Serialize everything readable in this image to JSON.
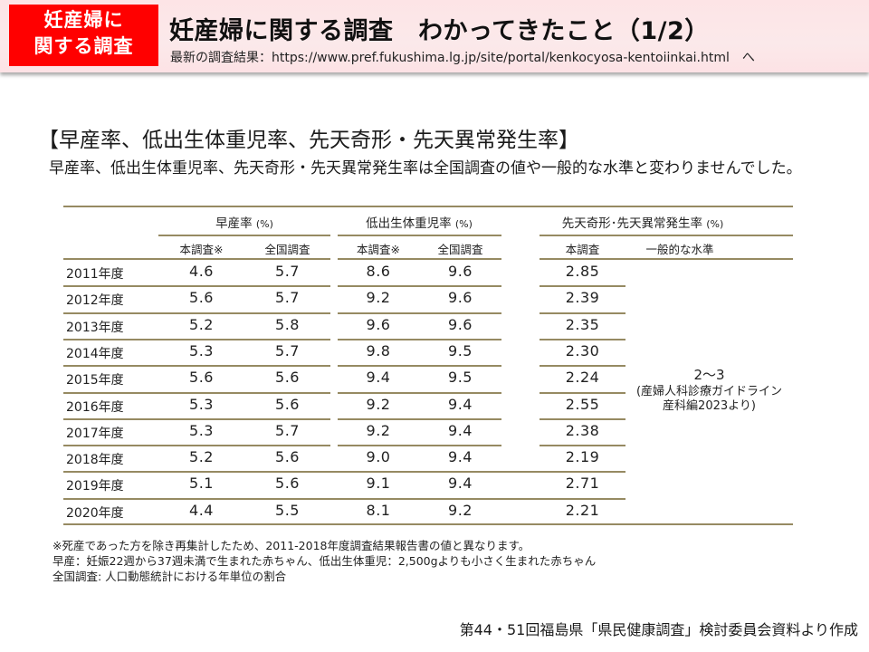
{
  "header": {
    "badge_line1": "妊産婦に",
    "badge_line2": "関する調査",
    "title": "妊産婦に関する調査　わかってきたこと（1/2）",
    "subtitle": "最新の調査結果：https://www.pref.fukushima.lg.jp/site/portal/kenkocyosa-kentoiinkai.html　へ",
    "badge_color": "#ff0000"
  },
  "section": {
    "heading": "【早産率、低出生体重児率、先天奇形・先天異常発生率】",
    "description": "早産率、低出生体重児率、先天奇形・先天異常発生率は全国調査の値や一般的な水準と変わりませんでした。"
  },
  "table": {
    "groups": [
      {
        "label": "早産率",
        "unit": "(%)"
      },
      {
        "label": "低出生体重児率",
        "unit": "(%)"
      },
      {
        "label": "先天奇形･先天異常発生率",
        "unit": "(%)"
      }
    ],
    "subheaders": [
      "本調査※",
      "全国調査",
      "本調査※",
      "全国調査",
      "本調査",
      "一般的な水準"
    ],
    "rows": [
      {
        "year": "2011年度",
        "preterm_survey": "4.6",
        "preterm_national": "5.7",
        "lbw_survey": "8.6",
        "lbw_national": "9.6",
        "anomaly_survey": "2.85"
      },
      {
        "year": "2012年度",
        "preterm_survey": "5.6",
        "preterm_national": "5.7",
        "lbw_survey": "9.2",
        "lbw_national": "9.6",
        "anomaly_survey": "2.39"
      },
      {
        "year": "2013年度",
        "preterm_survey": "5.2",
        "preterm_national": "5.8",
        "lbw_survey": "9.6",
        "lbw_national": "9.6",
        "anomaly_survey": "2.35"
      },
      {
        "year": "2014年度",
        "preterm_survey": "5.3",
        "preterm_national": "5.7",
        "lbw_survey": "9.8",
        "lbw_national": "9.5",
        "anomaly_survey": "2.30"
      },
      {
        "year": "2015年度",
        "preterm_survey": "5.6",
        "preterm_national": "5.6",
        "lbw_survey": "9.4",
        "lbw_national": "9.5",
        "anomaly_survey": "2.24"
      },
      {
        "year": "2016年度",
        "preterm_survey": "5.3",
        "preterm_national": "5.6",
        "lbw_survey": "9.2",
        "lbw_national": "9.4",
        "anomaly_survey": "2.55"
      },
      {
        "year": "2017年度",
        "preterm_survey": "5.3",
        "preterm_national": "5.7",
        "lbw_survey": "9.2",
        "lbw_national": "9.4",
        "anomaly_survey": "2.38"
      },
      {
        "year": "2018年度",
        "preterm_survey": "5.2",
        "preterm_national": "5.6",
        "lbw_survey": "9.0",
        "lbw_national": "9.4",
        "anomaly_survey": "2.19"
      },
      {
        "year": "2019年度",
        "preterm_survey": "5.1",
        "preterm_national": "5.6",
        "lbw_survey": "9.1",
        "lbw_national": "9.4",
        "anomaly_survey": "2.71"
      },
      {
        "year": "2020年度",
        "preterm_survey": "4.4",
        "preterm_national": "5.5",
        "lbw_survey": "8.1",
        "lbw_national": "9.2",
        "anomaly_survey": "2.21"
      }
    ],
    "general_level": {
      "value": "2～3",
      "source_line1": "(産婦人科診療ガイドライン",
      "source_line2": "産科編2023より)"
    },
    "line_color": "#968a62"
  },
  "footnotes": [
    "※死産であった方を除き再集計したため、2011-2018年度調査結果報告書の値と異なります。",
    "早産：妊娠22週から37週未満で生まれた赤ちゃん、低出生体重児：2,500gよりも小さく生まれた赤ちゃん",
    "全国調査: 人口動態統計における年単位の割合"
  ],
  "source": "第44・51回福島県「県民健康調査」検討委員会資料より作成"
}
